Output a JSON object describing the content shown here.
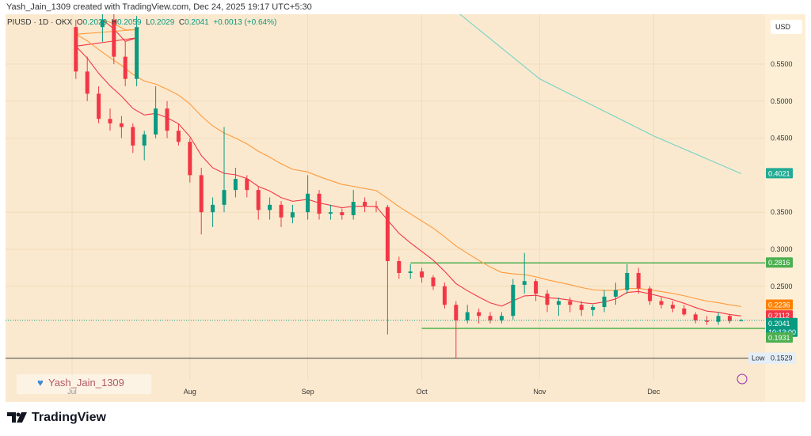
{
  "credit": "Yash_Jain_1309 created with TradingView.com, Dec 24, 2025 19:17 UTC+5:30",
  "legend": {
    "symbol": "PIUSD · 1D · OKX",
    "o_label": "O",
    "o": "0.2029",
    "h_label": "H",
    "h": "0.2059",
    "l_label": "L",
    "l": "0.2029",
    "c_label": "C",
    "c": "0.2041",
    "change": "+0.0013 (+0.64%)"
  },
  "currency": "USD",
  "watermark": "Yash_Jain_1309",
  "logo": "TradingView",
  "colors": {
    "up": "#089981",
    "down": "#f23645",
    "ema_fast": "#f23645",
    "ema_slow": "#ff9a3c",
    "ma_long": "#7ed6c7",
    "level": "#4caf50",
    "background": "#fbe9cf"
  },
  "chart_data": {
    "type": "candlestick",
    "yticks": [
      "0.5500",
      "0.5000",
      "0.4500",
      "0.3500",
      "0.3000",
      "0.2500"
    ],
    "ylim": [
      0.14,
      0.62
    ],
    "xticks": [
      "Jul",
      "Aug",
      "Sep",
      "Oct",
      "Nov",
      "Dec"
    ],
    "price_labels": [
      {
        "value": "0.4021",
        "color": "#22ab94"
      },
      {
        "value": "0.2816",
        "color": "#4caf50"
      },
      {
        "value": "0.2236",
        "color": "#ff8000"
      },
      {
        "value": "0.2112",
        "color": "#f23645"
      },
      {
        "value": "0.2041",
        "sub": "10:13:00",
        "color": "#089981"
      },
      {
        "value": "0.1931",
        "color": "#4caf50"
      }
    ],
    "low": {
      "label": "Low",
      "value": "0.1529"
    },
    "levels": [
      {
        "value": 0.2816,
        "from": "Sep 28"
      },
      {
        "value": 0.1931,
        "from": "Oct 1"
      }
    ],
    "ma_long": [
      [
        "Oct 8",
        0.63
      ],
      [
        "Nov 1",
        0.53
      ],
      [
        "Dec 1",
        0.453
      ],
      [
        "Dec 24",
        0.4021
      ]
    ],
    "candles": [
      [
        "Jun 20",
        0.6,
        0.63,
        0.58,
        0.61
      ],
      [
        "Jun 23",
        0.61,
        0.62,
        0.55,
        0.56
      ],
      [
        "Jun 26",
        0.56,
        0.58,
        0.52,
        0.53
      ],
      [
        "Jun 29",
        0.53,
        0.615,
        0.52,
        0.6
      ],
      [
        "Jul 2",
        0.6,
        0.61,
        0.53,
        0.54
      ],
      [
        "Jul 5",
        0.54,
        0.56,
        0.5,
        0.51
      ],
      [
        "Jul 8",
        0.51,
        0.52,
        0.47,
        0.476
      ],
      [
        "Jul 11",
        0.476,
        0.49,
        0.46,
        0.47
      ],
      [
        "Jul 14",
        0.47,
        0.48,
        0.45,
        0.465
      ],
      [
        "Jul 17",
        0.465,
        0.47,
        0.43,
        0.44
      ],
      [
        "Jul 20",
        0.44,
        0.46,
        0.42,
        0.455
      ],
      [
        "Jul 23",
        0.455,
        0.52,
        0.45,
        0.49
      ],
      [
        "Jul 26",
        0.49,
        0.5,
        0.45,
        0.46
      ],
      [
        "Jul 29",
        0.46,
        0.47,
        0.44,
        0.445
      ],
      [
        "Aug 1",
        0.445,
        0.45,
        0.39,
        0.4
      ],
      [
        "Aug 4",
        0.4,
        0.41,
        0.32,
        0.35
      ],
      [
        "Aug 7",
        0.35,
        0.37,
        0.33,
        0.36
      ],
      [
        "Aug 10",
        0.36,
        0.465,
        0.35,
        0.38
      ],
      [
        "Aug 13",
        0.38,
        0.41,
        0.37,
        0.395
      ],
      [
        "Aug 16",
        0.395,
        0.4,
        0.37,
        0.38
      ],
      [
        "Aug 19",
        0.38,
        0.385,
        0.34,
        0.353
      ],
      [
        "Aug 22",
        0.353,
        0.37,
        0.34,
        0.36
      ],
      [
        "Aug 25",
        0.36,
        0.365,
        0.33,
        0.343
      ],
      [
        "Aug 28",
        0.343,
        0.36,
        0.335,
        0.35
      ],
      [
        "Sep 1",
        0.35,
        0.4,
        0.34,
        0.375
      ],
      [
        "Sep 4",
        0.375,
        0.38,
        0.34,
        0.348
      ],
      [
        "Sep 7",
        0.348,
        0.36,
        0.34,
        0.35
      ],
      [
        "Sep 10",
        0.35,
        0.355,
        0.34,
        0.346
      ],
      [
        "Sep 13",
        0.346,
        0.38,
        0.34,
        0.364
      ],
      [
        "Sep 16",
        0.364,
        0.37,
        0.35,
        0.358
      ],
      [
        "Sep 19",
        0.358,
        0.365,
        0.35,
        0.357
      ],
      [
        "Sep 22",
        0.357,
        0.36,
        0.185,
        0.284
      ],
      [
        "Sep 25",
        0.284,
        0.29,
        0.26,
        0.268
      ],
      [
        "Sep 28",
        0.268,
        0.28,
        0.26,
        0.27
      ],
      [
        "Oct 1",
        0.27,
        0.275,
        0.255,
        0.262
      ],
      [
        "Oct 4",
        0.262,
        0.265,
        0.245,
        0.25
      ],
      [
        "Oct 7",
        0.25,
        0.255,
        0.22,
        0.225
      ],
      [
        "Oct 10",
        0.225,
        0.23,
        0.153,
        0.204
      ],
      [
        "Oct 13",
        0.204,
        0.225,
        0.2,
        0.215
      ],
      [
        "Oct 16",
        0.215,
        0.22,
        0.2,
        0.21
      ],
      [
        "Oct 19",
        0.21,
        0.215,
        0.2,
        0.204
      ],
      [
        "Oct 22",
        0.204,
        0.215,
        0.2,
        0.21
      ],
      [
        "Oct 25",
        0.21,
        0.26,
        0.205,
        0.252
      ],
      [
        "Oct 28",
        0.252,
        0.295,
        0.24,
        0.257
      ],
      [
        "Oct 31",
        0.257,
        0.26,
        0.23,
        0.24
      ],
      [
        "Nov 3",
        0.24,
        0.245,
        0.215,
        0.225
      ],
      [
        "Nov 6",
        0.225,
        0.235,
        0.21,
        0.23
      ],
      [
        "Nov 9",
        0.23,
        0.235,
        0.215,
        0.225
      ],
      [
        "Nov 12",
        0.225,
        0.23,
        0.21,
        0.218
      ],
      [
        "Nov 15",
        0.218,
        0.225,
        0.21,
        0.222
      ],
      [
        "Nov 18",
        0.222,
        0.245,
        0.215,
        0.236
      ],
      [
        "Nov 21",
        0.236,
        0.255,
        0.225,
        0.245
      ],
      [
        "Nov 24",
        0.245,
        0.28,
        0.24,
        0.268
      ],
      [
        "Nov 27",
        0.268,
        0.275,
        0.24,
        0.247
      ],
      [
        "Nov 30",
        0.247,
        0.25,
        0.225,
        0.23
      ],
      [
        "Dec 3",
        0.23,
        0.235,
        0.22,
        0.225
      ],
      [
        "Dec 6",
        0.225,
        0.23,
        0.215,
        0.22
      ],
      [
        "Dec 9",
        0.22,
        0.225,
        0.21,
        0.212
      ],
      [
        "Dec 12",
        0.212,
        0.215,
        0.2,
        0.204
      ],
      [
        "Dec 15",
        0.204,
        0.21,
        0.198,
        0.202
      ],
      [
        "Dec 18",
        0.202,
        0.215,
        0.198,
        0.21
      ],
      [
        "Dec 21",
        0.21,
        0.212,
        0.2,
        0.203
      ],
      [
        "Dec 24",
        0.2029,
        0.2059,
        0.2029,
        0.2041
      ]
    ]
  }
}
